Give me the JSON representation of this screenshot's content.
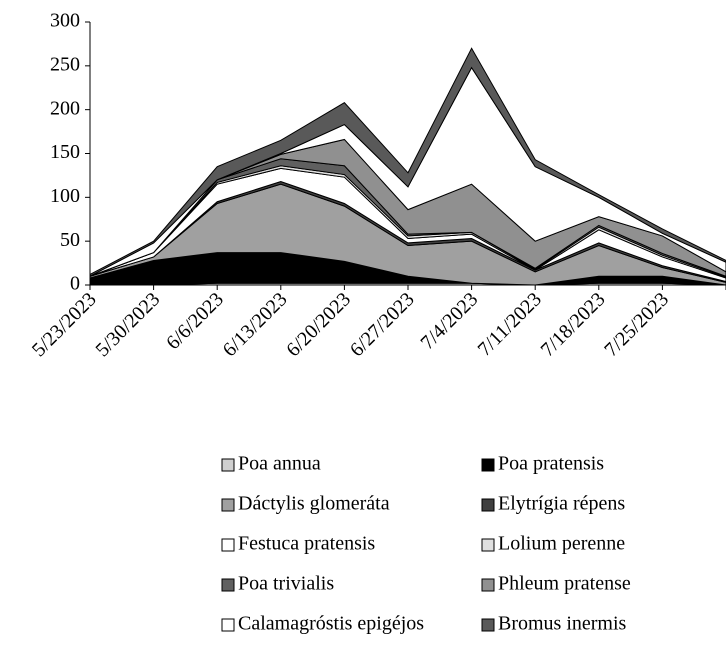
{
  "chart_data": {
    "type": "stacked_area",
    "categories": [
      "5/23/2023",
      "5/30/2023",
      "6/6/2023",
      "6/13/2023",
      "6/20/2023",
      "6/27/2023",
      "7/4/2023",
      "7/11/2023",
      "7/18/2023",
      "7/25/2023",
      null
    ],
    "series": [
      {
        "name": "Poa annua",
        "color": "#d0d0d0",
        "values": [
          0,
          0,
          2,
          2,
          2,
          2,
          2,
          0,
          2,
          2,
          0
        ]
      },
      {
        "name": "Poa pratensis",
        "color": "#000000",
        "values": [
          8,
          28,
          35,
          35,
          25,
          8,
          0,
          0,
          8,
          8,
          0
        ]
      },
      {
        "name": "Dáctylis glomeráta",
        "color": "#a0a0a0",
        "values": [
          2,
          4,
          56,
          78,
          63,
          35,
          48,
          15,
          35,
          10,
          3
        ]
      },
      {
        "name": "Elytrígia répens",
        "color": "#404040",
        "values": [
          0,
          0,
          2,
          3,
          3,
          3,
          3,
          2,
          3,
          2,
          1
        ]
      },
      {
        "name": "Festuca pratensis",
        "color": "#ffffff",
        "values": [
          0,
          5,
          20,
          15,
          30,
          5,
          5,
          0,
          15,
          10,
          4
        ]
      },
      {
        "name": "Lolium perenne",
        "color": "#e0e0e0",
        "values": [
          0,
          0,
          2,
          3,
          3,
          3,
          2,
          1,
          3,
          2,
          1
        ]
      },
      {
        "name": "Poa trivialis",
        "color": "#606060",
        "values": [
          0,
          0,
          3,
          8,
          10,
          2,
          0,
          1,
          2,
          2,
          1
        ]
      },
      {
        "name": "Phleum pratense",
        "color": "#909090",
        "values": [
          0,
          0,
          0,
          5,
          30,
          28,
          55,
          31,
          10,
          20,
          5
        ]
      },
      {
        "name": "Calamagróstis epigéjos",
        "color": "#ffffff",
        "values": [
          0,
          11,
          0,
          1,
          17,
          26,
          133,
          85,
          22,
          3,
          11
        ]
      },
      {
        "name": "Bromus inermis",
        "color": "#595959",
        "values": [
          2,
          2,
          15,
          15,
          25,
          16,
          22,
          8,
          3,
          5,
          2
        ]
      }
    ],
    "ylim": [
      0,
      300
    ],
    "yticks": [
      0,
      50,
      100,
      150,
      200,
      250,
      300
    ]
  }
}
